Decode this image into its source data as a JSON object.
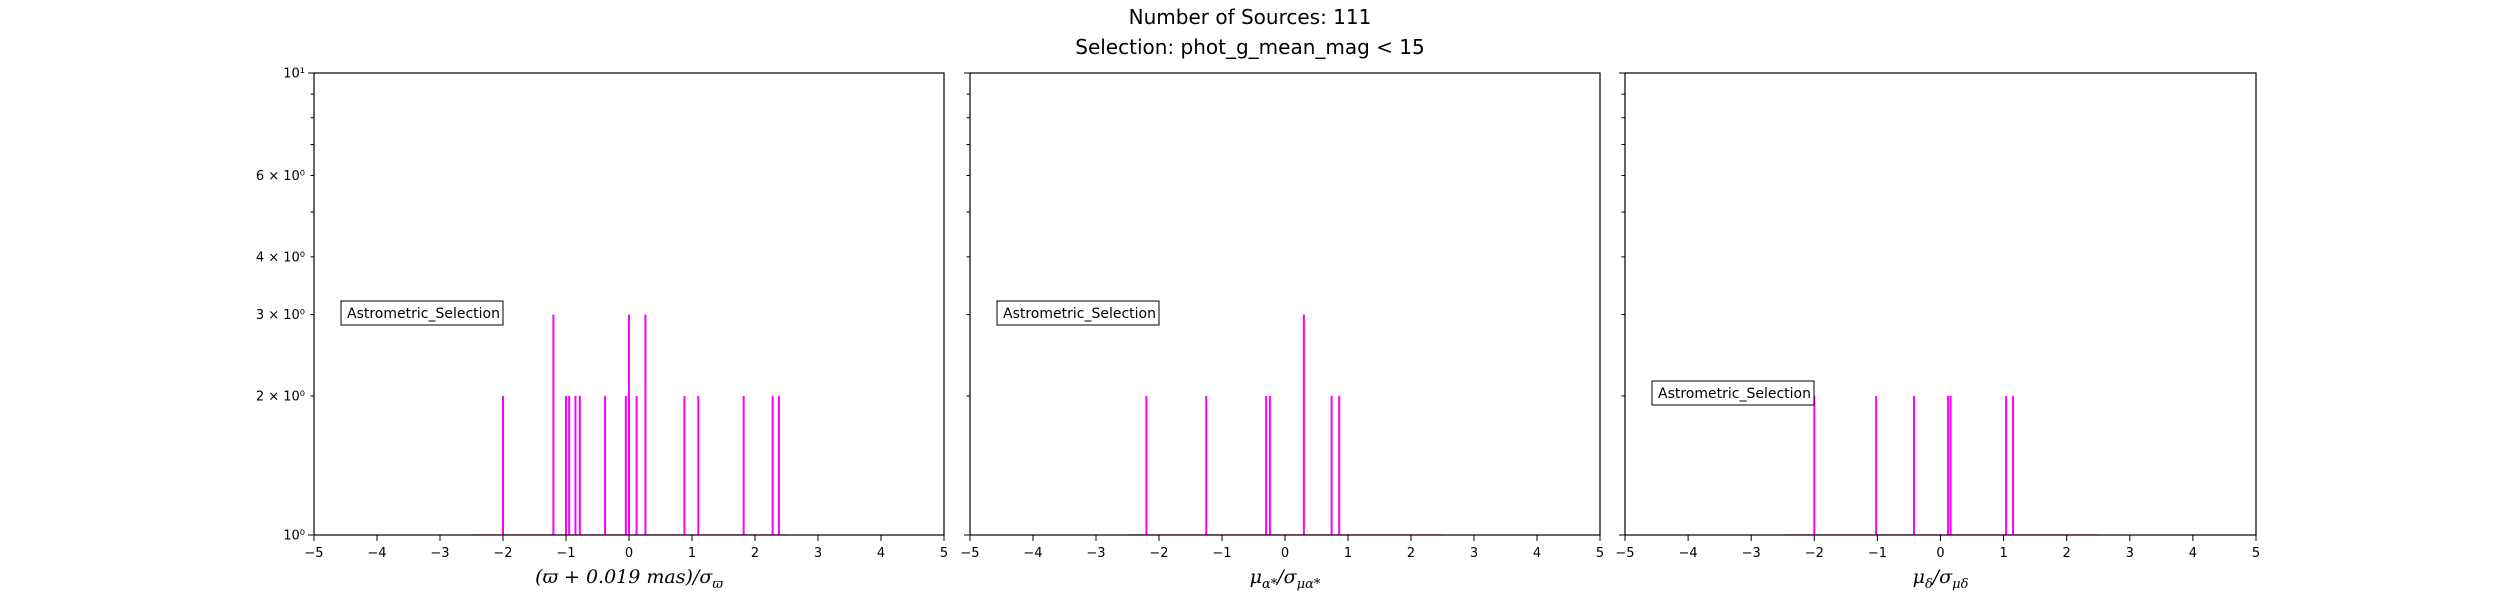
{
  "figure": {
    "title_line1": "Number of Sources: 111",
    "title_line2": "Selection: phot_g_mean_mag < 15"
  },
  "chart_data": [
    {
      "type": "bar",
      "xlabel": "(ϖ + 0.019 mas)/σϖ",
      "xlim": [
        -5,
        5
      ],
      "ylim": [
        1,
        10
      ],
      "yscale": "log",
      "x_ticks": [
        "−5",
        "−4",
        "−3",
        "−2",
        "−1",
        "0",
        "1",
        "2",
        "3",
        "4",
        "5"
      ],
      "y_ticks": [
        {
          "value": 1,
          "label": "10⁰"
        },
        {
          "value": 2,
          "label": "2 × 10⁰"
        },
        {
          "value": 3,
          "label": "3 × 10⁰"
        },
        {
          "value": 4,
          "label": "4 × 10⁰"
        },
        {
          "value": 6,
          "label": "6 × 10⁰"
        },
        {
          "value": 10,
          "label": "10¹"
        }
      ],
      "y_tick_labels_visible": true,
      "annotation": "Astrometric_Selection",
      "annotation_position": "middle-left",
      "color": "#ff00ff",
      "bars": [
        {
          "x": -2.0,
          "count": 2
        },
        {
          "x": -1.2,
          "count": 3
        },
        {
          "x": -1.0,
          "count": 2
        },
        {
          "x": -0.95,
          "count": 2
        },
        {
          "x": -0.85,
          "count": 2
        },
        {
          "x": -0.78,
          "count": 2
        },
        {
          "x": -0.38,
          "count": 2
        },
        {
          "x": -0.05,
          "count": 2
        },
        {
          "x": 0.0,
          "count": 3
        },
        {
          "x": 0.12,
          "count": 2
        },
        {
          "x": 0.26,
          "count": 3
        },
        {
          "x": 0.88,
          "count": 2
        },
        {
          "x": 1.1,
          "count": 2
        },
        {
          "x": 1.82,
          "count": 2
        },
        {
          "x": 2.28,
          "count": 2
        },
        {
          "x": 2.38,
          "count": 2
        }
      ]
    },
    {
      "type": "bar",
      "xlabel": "μα*/σμα*",
      "xlim": [
        -5,
        5
      ],
      "ylim": [
        1,
        10
      ],
      "yscale": "log",
      "x_ticks": [
        "−5",
        "−4",
        "−3",
        "−2",
        "−1",
        "0",
        "1",
        "2",
        "3",
        "4",
        "5"
      ],
      "y_ticks": [
        {
          "value": 1,
          "label": ""
        },
        {
          "value": 2,
          "label": ""
        },
        {
          "value": 3,
          "label": ""
        },
        {
          "value": 4,
          "label": ""
        },
        {
          "value": 6,
          "label": ""
        },
        {
          "value": 10,
          "label": ""
        }
      ],
      "y_tick_labels_visible": false,
      "annotation": "Astrometric_Selection",
      "annotation_position": "middle-left",
      "color": "#ff00ff",
      "bars": [
        {
          "x": -2.2,
          "count": 2
        },
        {
          "x": -1.25,
          "count": 2
        },
        {
          "x": -0.3,
          "count": 2
        },
        {
          "x": -0.24,
          "count": 2
        },
        {
          "x": 0.3,
          "count": 3
        },
        {
          "x": 0.74,
          "count": 2
        },
        {
          "x": 0.86,
          "count": 2
        }
      ]
    },
    {
      "type": "bar",
      "xlabel": "μδ/σμδ",
      "xlim": [
        -5,
        5
      ],
      "ylim": [
        1,
        10
      ],
      "yscale": "log",
      "x_ticks": [
        "−5",
        "−4",
        "−3",
        "−2",
        "−1",
        "0",
        "1",
        "2",
        "3",
        "4",
        "5"
      ],
      "y_ticks": [
        {
          "value": 1,
          "label": ""
        },
        {
          "value": 2,
          "label": ""
        },
        {
          "value": 3,
          "label": ""
        },
        {
          "value": 4,
          "label": ""
        },
        {
          "value": 6,
          "label": ""
        },
        {
          "value": 10,
          "label": ""
        }
      ],
      "y_tick_labels_visible": false,
      "annotation": "Astrometric_Selection",
      "annotation_position": "lower-left",
      "color": "#ff00ff",
      "bars": [
        {
          "x": -2.0,
          "count": 2
        },
        {
          "x": -1.02,
          "count": 2
        },
        {
          "x": -0.42,
          "count": 2
        },
        {
          "x": 0.12,
          "count": 2
        },
        {
          "x": 0.16,
          "count": 2
        },
        {
          "x": 1.04,
          "count": 2
        },
        {
          "x": 1.15,
          "count": 2
        }
      ]
    }
  ]
}
